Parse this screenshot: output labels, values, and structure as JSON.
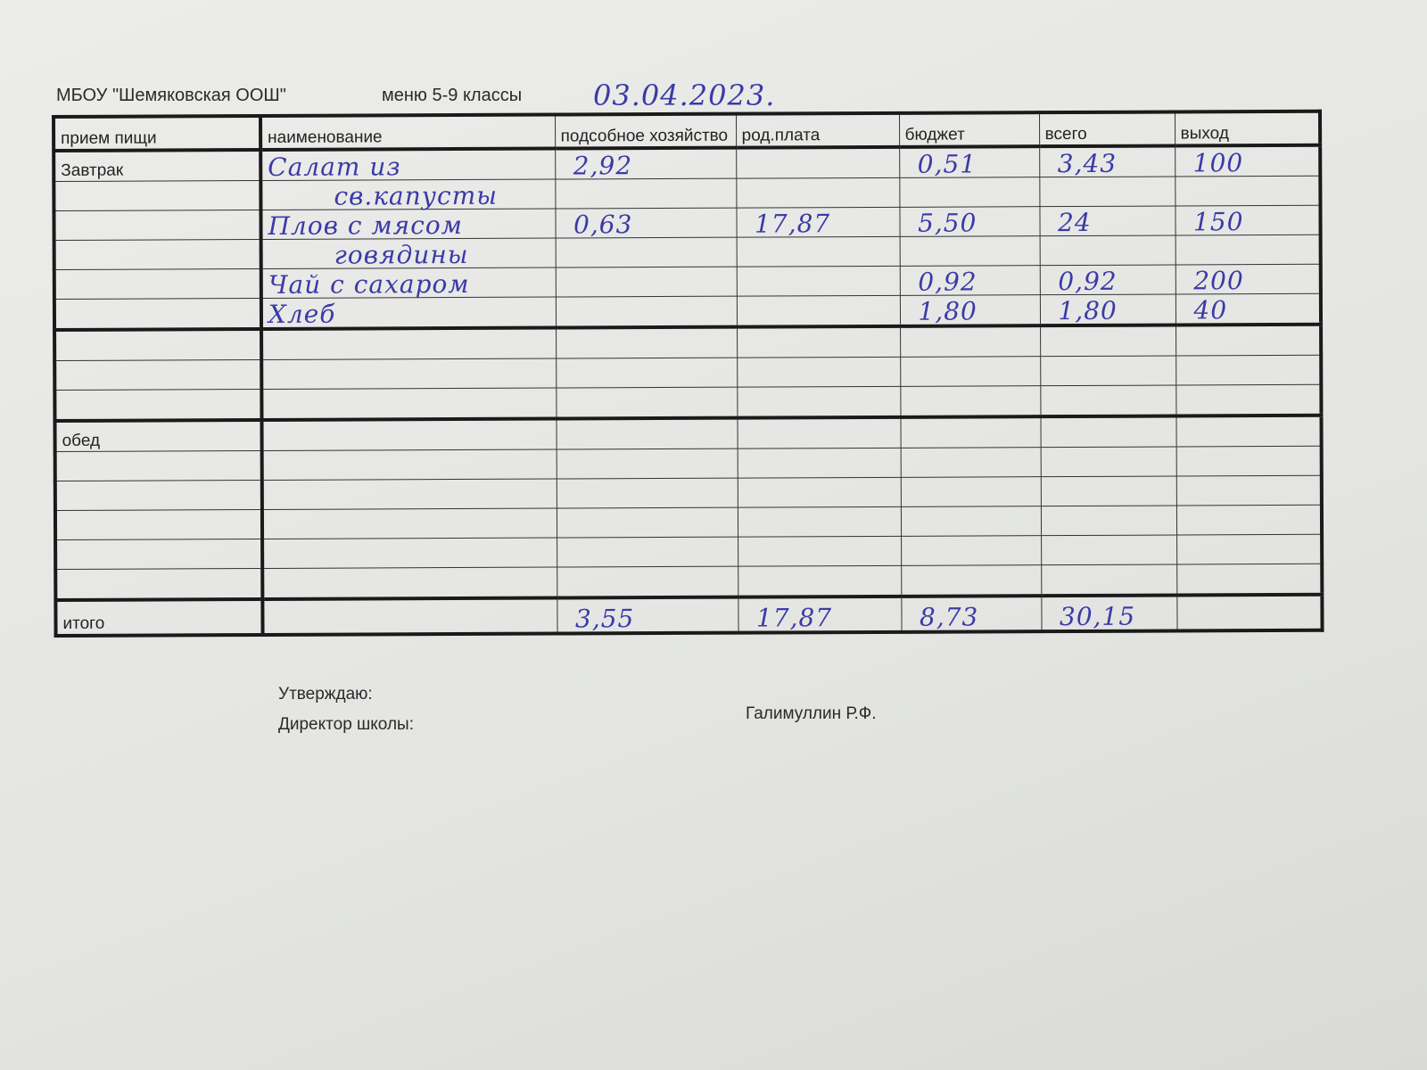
{
  "header": {
    "school": "МБОУ \"Шемяковская ООШ\"",
    "menu": "меню 5-9 классы",
    "date": "03.04.2023."
  },
  "table": {
    "columns": [
      "прием пищи",
      "наименование",
      "подсобное хозяйство",
      "род.плата",
      "бюджет",
      "всего",
      "выход"
    ],
    "rows": [
      {
        "meal": "Завтрак",
        "name": "Салат из",
        "farm": "2,92",
        "parent": "",
        "budget": "0,51",
        "total": "3,43",
        "yield": "100"
      },
      {
        "meal": "",
        "name": "св.капусты",
        "farm": "",
        "parent": "",
        "budget": "",
        "total": "",
        "yield": ""
      },
      {
        "meal": "",
        "name": "Плов с мясом",
        "farm": "0,63",
        "parent": "17,87",
        "budget": "5,50",
        "total": "24",
        "yield": "150"
      },
      {
        "meal": "",
        "name": "говядины",
        "farm": "",
        "parent": "",
        "budget": "",
        "total": "",
        "yield": ""
      },
      {
        "meal": "",
        "name": "Чай с сахаром",
        "farm": "",
        "parent": "",
        "budget": "0,92",
        "total": "0,92",
        "yield": "200"
      },
      {
        "meal": "",
        "name": "Хлеб",
        "farm": "",
        "parent": "",
        "budget": "1,80",
        "total": "1,80",
        "yield": "40"
      },
      {
        "meal": "",
        "name": "",
        "farm": "",
        "parent": "",
        "budget": "",
        "total": "",
        "yield": ""
      },
      {
        "meal": "",
        "name": "",
        "farm": "",
        "parent": "",
        "budget": "",
        "total": "",
        "yield": ""
      },
      {
        "meal": "",
        "name": "",
        "farm": "",
        "parent": "",
        "budget": "",
        "total": "",
        "yield": ""
      },
      {
        "meal": "обед",
        "name": "",
        "farm": "",
        "parent": "",
        "budget": "",
        "total": "",
        "yield": ""
      },
      {
        "meal": "",
        "name": "",
        "farm": "",
        "parent": "",
        "budget": "",
        "total": "",
        "yield": ""
      },
      {
        "meal": "",
        "name": "",
        "farm": "",
        "parent": "",
        "budget": "",
        "total": "",
        "yield": ""
      },
      {
        "meal": "",
        "name": "",
        "farm": "",
        "parent": "",
        "budget": "",
        "total": "",
        "yield": ""
      },
      {
        "meal": "",
        "name": "",
        "farm": "",
        "parent": "",
        "budget": "",
        "total": "",
        "yield": ""
      },
      {
        "meal": "",
        "name": "",
        "farm": "",
        "parent": "",
        "budget": "",
        "total": "",
        "yield": ""
      }
    ],
    "totals": {
      "label": "итого",
      "farm": "3,55",
      "parent": "17,87",
      "budget": "8,73",
      "total": "30,15",
      "yield": ""
    }
  },
  "footer": {
    "approve": "Утверждаю:",
    "director": "Директор школы:",
    "name": "Галимуллин Р.Ф."
  }
}
